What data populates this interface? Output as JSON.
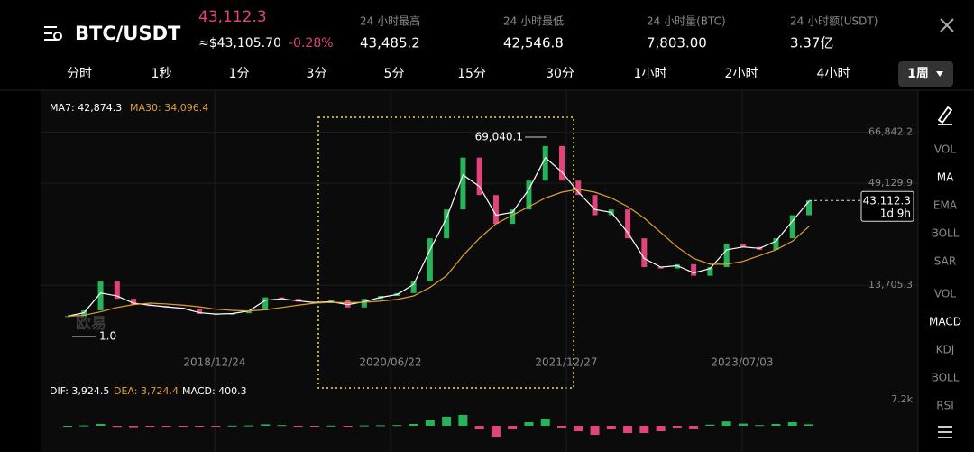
{
  "header": {
    "pair": "BTC/USDT",
    "last_price": "43,112.3",
    "usd_price": "≈$43,105.70",
    "change": "-0.28%",
    "stats": [
      {
        "label": "24 小时最高",
        "value": "43,485.2"
      },
      {
        "label": "24 小时最低",
        "value": "42,546.8"
      },
      {
        "label": "24 小时量(BTC)",
        "value": "7,803.00"
      },
      {
        "label": "24 小时额(USDT)",
        "value": "3.37亿"
      }
    ]
  },
  "tabs": [
    "分时",
    "1秒",
    "1分",
    "3分",
    "5分",
    "15分",
    "30分",
    "1小时",
    "2小时",
    "4小时",
    "1周"
  ],
  "selected_tab": 10,
  "indicators": [
    "VOL",
    "MA",
    "EMA",
    "BOLL",
    "SAR",
    "VOL",
    "MACD",
    "KDJ",
    "BOLL",
    "RSI"
  ],
  "active_indicators": [
    1,
    6
  ],
  "watermark": "欧易",
  "chart_data": {
    "type": "candlestick",
    "series": [
      {
        "name": "MA7",
        "legend": "MA7: 42,874.3",
        "color": "#ffffff",
        "values": [
          3000,
          4200,
          11000,
          10000,
          7500,
          6800,
          6200,
          5700,
          4200,
          3700,
          3900,
          4800,
          8500,
          9000,
          8300,
          7700,
          8000,
          7000,
          8000,
          9500,
          10500,
          14000,
          26000,
          37000,
          52000,
          48000,
          38000,
          39000,
          47000,
          58000,
          53000,
          46000,
          40000,
          39000,
          32000,
          23000,
          20000,
          20500,
          18000,
          19500,
          26000,
          27000,
          26500,
          29000,
          36000,
          42874.3
        ]
      },
      {
        "name": "MA30",
        "legend": "MA30: 34,096.4",
        "color": "#e0a030",
        "values": [
          3000,
          3300,
          4500,
          6000,
          7000,
          7500,
          7200,
          6800,
          6200,
          5400,
          5000,
          4800,
          5200,
          6000,
          6800,
          7500,
          7800,
          7700,
          7800,
          8200,
          8800,
          10000,
          13000,
          17000,
          24000,
          30000,
          35000,
          38000,
          41000,
          44000,
          46000,
          47000,
          46000,
          44000,
          41000,
          37000,
          32000,
          27000,
          23000,
          21000,
          21000,
          22000,
          24000,
          26000,
          29000,
          34096.4
        ]
      }
    ],
    "candles": [
      3000,
      5000,
      15000,
      9000,
      7000,
      6500,
      6000,
      5500,
      3800,
      3500,
      4000,
      5000,
      9500,
      9000,
      8000,
      7500,
      8500,
      6000,
      9000,
      10000,
      11000,
      15000,
      30000,
      40000,
      58000,
      45000,
      35000,
      40000,
      50000,
      62000,
      50000,
      45000,
      38000,
      40000,
      30000,
      20000,
      19500,
      21000,
      17000,
      20000,
      28000,
      27000,
      26000,
      30000,
      38000,
      43112.3
    ],
    "up_color": "#27b35a",
    "down_color": "#e0447a",
    "ylim": [
      -6271,
      71980
    ],
    "yticks": [
      {
        "value": 13705.3,
        "label": "13,705.3"
      },
      {
        "value": 49129.9,
        "label": "49,129.9"
      },
      {
        "value": 66842.2,
        "label": "66,842.2"
      }
    ],
    "xticks": [
      "2018/12/24",
      "2020/06/22",
      "2021/12/27",
      "2023/07/03"
    ],
    "max_label": "69,040.1",
    "min_label": "1.0",
    "current_price": {
      "value": 43112.3,
      "label": "43,112.3",
      "countdown": "1d 9h"
    },
    "macd": {
      "legend": {
        "dif": "DIF: 3,924.5",
        "dea": "DEA: 3,724.4",
        "macd": "MACD: 400.3"
      },
      "values": [
        0,
        100,
        500,
        -300,
        -400,
        -200,
        -100,
        -100,
        -200,
        -100,
        50,
        100,
        400,
        200,
        -100,
        -100,
        50,
        -200,
        100,
        150,
        200,
        500,
        1500,
        2500,
        3000,
        -1000,
        -3000,
        -1000,
        1000,
        2000,
        -500,
        -1500,
        -2500,
        -1000,
        -2000,
        -2000,
        -1500,
        -500,
        -800,
        300,
        1200,
        600,
        200,
        500,
        1000,
        400.3
      ],
      "ylim": [
        -7200,
        7200
      ],
      "yticks": [
        {
          "value": 7200,
          "label": "7.2k"
        }
      ]
    }
  }
}
